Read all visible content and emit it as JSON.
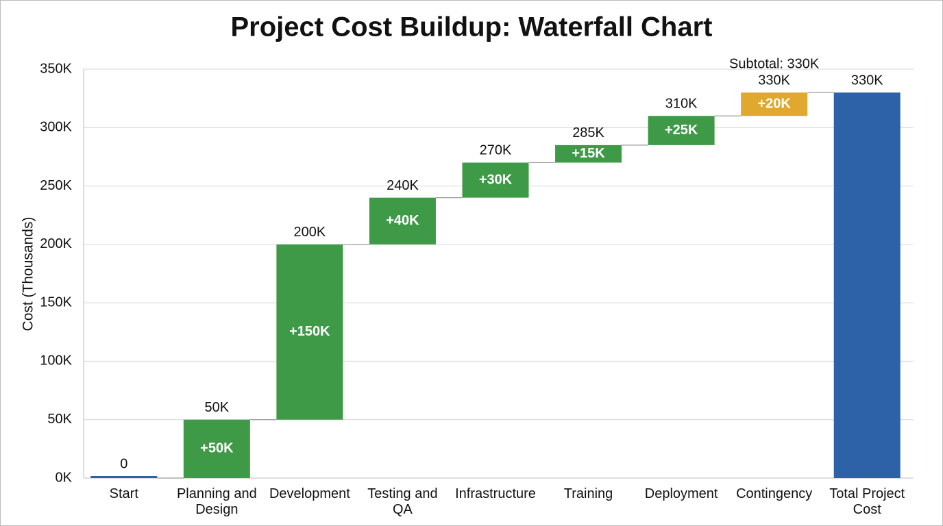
{
  "chart_data": {
    "type": "waterfall",
    "title": "Project Cost Buildup: Waterfall Chart",
    "y_label": "Cost (Thousands)",
    "categories": [
      "Start",
      "Planning and Design",
      "Development",
      "Testing and QA",
      "Infrastructure",
      "Training",
      "Deployment",
      "Contingency",
      "Total Project Cost"
    ],
    "measure": [
      "absolute",
      "relative",
      "relative",
      "relative",
      "relative",
      "relative",
      "relative",
      "relative",
      "total"
    ],
    "values": [
      0,
      50,
      150,
      40,
      30,
      15,
      25,
      20,
      330
    ],
    "value_labels": [
      null,
      "+50K",
      "+150K",
      "+40K",
      "+30K",
      "+15K",
      "+25K",
      "+20K",
      null
    ],
    "total_labels": [
      "0",
      "50K",
      "200K",
      "240K",
      "270K",
      "285K",
      "310K",
      "330K",
      "330K"
    ],
    "colors": [
      "#2e62a8",
      "#3f9a48",
      "#3f9a48",
      "#3f9a48",
      "#3f9a48",
      "#3f9a48",
      "#3f9a48",
      "#e0a82e",
      "#2e62a8"
    ],
    "annotation": "Subtotal: 330K",
    "ylim": [
      0,
      350
    ],
    "yticks": [
      {
        "value": 0,
        "label": "0K"
      },
      {
        "value": 50,
        "label": "50K"
      },
      {
        "value": 100,
        "label": "100K"
      },
      {
        "value": 150,
        "label": "150K"
      },
      {
        "value": 200,
        "label": "200K"
      },
      {
        "value": 250,
        "label": "250K"
      },
      {
        "value": 300,
        "label": "300K"
      },
      {
        "value": 350,
        "label": "350K"
      }
    ],
    "grid": true
  }
}
